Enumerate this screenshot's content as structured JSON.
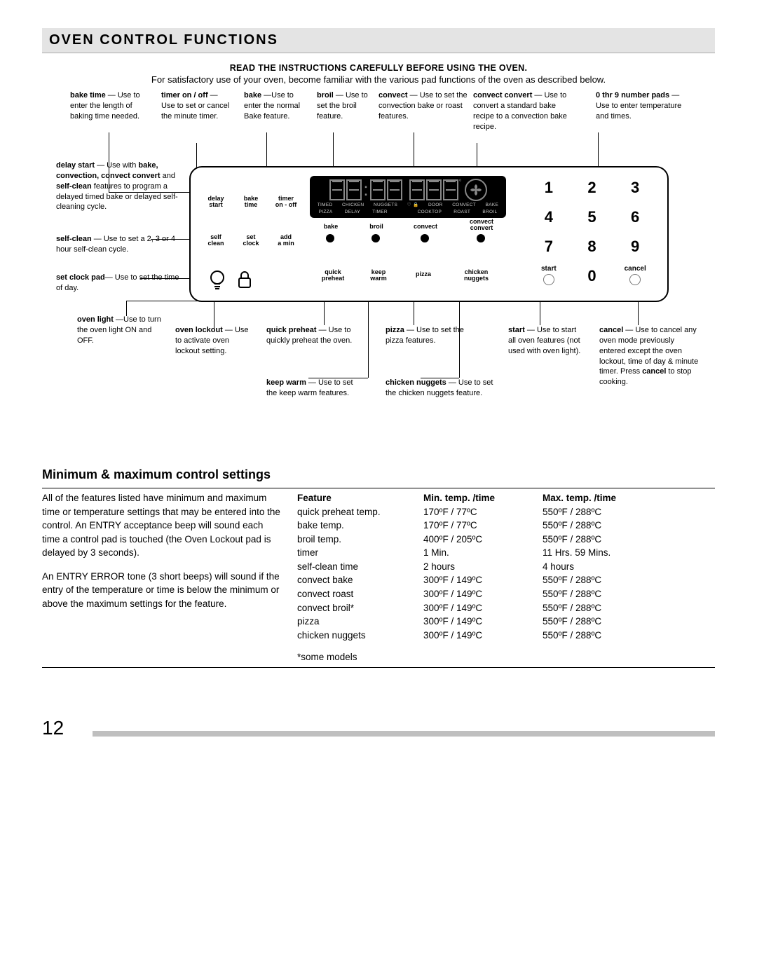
{
  "titlebar": {
    "text": "OVEN CONTROL FUNCTIONS"
  },
  "instructions": {
    "bold": "READ THE INSTRUCTIONS CAREFULLY BEFORE USING THE OVEN.",
    "sub": "For satisfactory use of your oven, become familiar with the various pad functions of the oven as described below."
  },
  "callouts": {
    "bake_time": "bake time — Use to enter the length of baking time needed.",
    "timer": "timer on / off — Use to set or cancel the minute timer.",
    "bake": "bake —Use to enter the normal Bake feature.",
    "broil": "broil — Use to set the broil feature.",
    "convect": "convect — Use to set the convection bake or roast features.",
    "convect_convert": "convect convert — Use to convert a standard bake recipe to a convection bake recipe.",
    "num_pads": "0 thr 9 number pads — Use to enter temperature and times.",
    "delay_start": "delay start — Use with bake, convection, convect convert and self-clean features to program a delayed timed bake or delayed self-cleaning cycle.",
    "self_clean": "self-clean — Use to set a 2, 3 or 4 hour self-clean cycle.",
    "set_clock": "set clock pad— Use to set the time of day.",
    "oven_light": "oven light —Use to turn the oven light ON and OFF.",
    "oven_lockout": "oven lockout — Use to activate oven lockout setting.",
    "quick_preheat": "quick preheat — Use to quickly preheat the oven.",
    "keep_warm": "keep warm — Use to set the keep warm features.",
    "pizza": "pizza — Use to set the pizza features.",
    "chicken_nuggets": "chicken nuggets — Use to set the chicken nuggets feature.",
    "start": "start — Use to start all oven features (not used with oven light).",
    "cancel": "cancel — Use to cancel any oven mode previously entered except the oven lockout, time of day & minute timer. Press cancel to stop cooking."
  },
  "panel_labels": {
    "delay_start": "delay\nstart",
    "bake_time": "bake\ntime",
    "timer": "timer\non - off",
    "self_clean": "self\nclean",
    "set_clock": "set\nclock",
    "add_min": "add\na min",
    "bake": "bake",
    "broil": "broil",
    "convect": "convect",
    "convect_convert": "convect\nconvert",
    "quick_preheat": "quick\npreheat",
    "keep_warm": "keep\nwarm",
    "pizza": "pizza",
    "chicken_nuggets": "chicken\nnuggets",
    "start": "start",
    "cancel": "cancel"
  },
  "display_indicators": {
    "row1": [
      "TIMED",
      "CHICKEN",
      "NUGGETS",
      "DOOR",
      "CONVECT",
      "BAKE"
    ],
    "row2": [
      "PIZZA",
      "DELAY",
      "TIMER",
      "COOKTOP",
      "ROAST",
      "BROIL"
    ]
  },
  "keypad": {
    "keys": [
      "1",
      "2",
      "3",
      "4",
      "5",
      "6",
      "7",
      "8",
      "9",
      "0"
    ]
  },
  "settings": {
    "heading": "Minimum & maximum control settings",
    "para1": "All of the features listed have minimum and maximum time or temperature settings that may be entered into the control. An ENTRY acceptance beep will sound each time a control pad is touched (the Oven Lockout pad is delayed by 3 seconds).",
    "para2": "An ENTRY ERROR tone (3 short beeps) will sound if the entry of the temperature or time is below the minimum or above the maximum settings for the feature.",
    "columns": [
      "Feature",
      "Min. temp. /time",
      "Max. temp. /time"
    ],
    "rows": [
      [
        "quick preheat temp.",
        "170ºF / 77ºC",
        "550ºF / 288ºC"
      ],
      [
        "bake temp.",
        "170ºF / 77ºC",
        "550ºF / 288ºC"
      ],
      [
        "broil temp.",
        "400ºF / 205ºC",
        "550ºF / 288ºC"
      ],
      [
        "timer",
        "1 Min.",
        "11 Hrs. 59 Mins."
      ],
      [
        "self-clean time",
        "2 hours",
        "4 hours"
      ],
      [
        "convect bake",
        "300ºF / 149ºC",
        "550ºF / 288ºC"
      ],
      [
        "convect roast",
        "300ºF / 149ºC",
        "550ºF / 288ºC"
      ],
      [
        "convect broil*",
        "300ºF / 149ºC",
        "550ºF / 288ºC"
      ],
      [
        "pizza",
        "300ºF / 149ºC",
        "550ºF / 288ºC"
      ],
      [
        "chicken nuggets",
        "300ºF / 149ºC",
        "550ºF / 288ºC"
      ]
    ],
    "footnote": "*some models"
  },
  "page_number": "12"
}
